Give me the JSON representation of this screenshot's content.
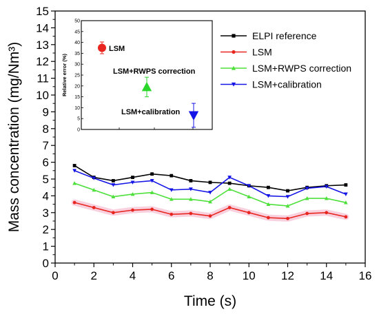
{
  "chart_data": [
    {
      "type": "line",
      "title": "",
      "xlabel": "Time (s)",
      "ylabel": "Mass concentration (mg/Nm³)",
      "xlim": [
        0,
        16
      ],
      "ylim": [
        0,
        15
      ],
      "xticks": [
        0,
        2,
        4,
        6,
        8,
        10,
        12,
        14,
        16
      ],
      "yticks": [
        0,
        1,
        2,
        3,
        4,
        5,
        6,
        7,
        8,
        9,
        10,
        11,
        12,
        13,
        14,
        15
      ],
      "legend_position": "top-right",
      "x": [
        1,
        2,
        3,
        4,
        5,
        6,
        7,
        8,
        9,
        10,
        11,
        12,
        13,
        14,
        15
      ],
      "series": [
        {
          "name": "ELPI reference",
          "color": "#000000",
          "marker": "square",
          "values": [
            5.8,
            5.1,
            4.9,
            5.1,
            5.3,
            5.2,
            4.9,
            4.8,
            4.75,
            4.6,
            4.5,
            4.3,
            4.5,
            4.6,
            4.65
          ]
        },
        {
          "name": "LSM",
          "color": "#e8251f",
          "marker": "circle",
          "values": [
            3.6,
            3.3,
            3.0,
            3.15,
            3.2,
            2.9,
            2.95,
            2.8,
            3.3,
            3.0,
            2.7,
            2.65,
            2.95,
            3.0,
            2.75
          ]
        },
        {
          "name": "LSM+RWPS correction",
          "color": "#4de03a",
          "marker": "triangle-up",
          "values": [
            4.75,
            4.35,
            3.95,
            4.1,
            4.2,
            3.8,
            3.8,
            3.65,
            4.4,
            3.95,
            3.5,
            3.4,
            3.85,
            3.85,
            3.6
          ]
        },
        {
          "name": "LSM+calibration",
          "color": "#1414e6",
          "marker": "triangle-down",
          "values": [
            5.5,
            5.05,
            4.65,
            4.8,
            4.9,
            4.35,
            4.4,
            4.2,
            5.1,
            4.6,
            4.0,
            3.95,
            4.45,
            4.55,
            4.1
          ]
        }
      ]
    },
    {
      "type": "scatter",
      "title": "",
      "xlabel": "",
      "ylabel": "Relative error (%)",
      "ylim": [
        0,
        50
      ],
      "yticks": [
        0,
        5,
        10,
        15,
        20,
        25,
        30,
        35,
        40,
        45,
        50
      ],
      "points": [
        {
          "label": "LSM",
          "color": "#e8251f",
          "marker": "circle",
          "y": 37.5,
          "err": 2.7
        },
        {
          "label": "LSM+RWPS correction",
          "color": "#2bd62b",
          "marker": "triangle-up",
          "y": 19.5,
          "err": 4.5
        },
        {
          "label": "LSM+calibration",
          "color": "#1414e6",
          "marker": "triangle-down",
          "y": 6.5,
          "err": 5.5
        }
      ]
    }
  ]
}
